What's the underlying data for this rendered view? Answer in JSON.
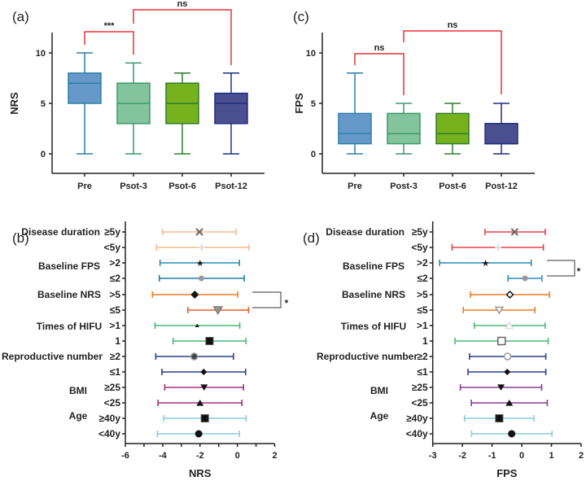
{
  "chart_data": [
    {
      "panel": "(a)",
      "type": "box",
      "ylabel": "NRS",
      "ylim": [
        -2,
        12
      ],
      "yticks": [
        0,
        5,
        10
      ],
      "categories": [
        "Pre",
        "Psot-3",
        "Psot-6",
        "Psot-12"
      ],
      "boxes": [
        {
          "min": 0,
          "q1": 5,
          "median": 7,
          "q3": 8,
          "max": 10,
          "fill": "#6699c9",
          "stroke": "#2b7fa6"
        },
        {
          "min": 0,
          "q1": 3,
          "median": 5,
          "q3": 7,
          "max": 9,
          "fill": "#84c49c",
          "stroke": "#3a9a6a"
        },
        {
          "min": 0,
          "q1": 3,
          "median": 5,
          "q3": 7,
          "max": 8,
          "fill": "#76b21e",
          "stroke": "#2f7d2a"
        },
        {
          "min": 0,
          "q1": 3,
          "median": 5,
          "q3": 6,
          "max": 8,
          "fill": "#4a4f8f",
          "stroke": "#1e2f80"
        }
      ],
      "comparisons": [
        {
          "from": 0,
          "to": 1,
          "label": "***"
        },
        {
          "from": 1,
          "to": 3,
          "label": "ns"
        }
      ]
    },
    {
      "panel": "(c)",
      "type": "box",
      "ylabel": "FPS",
      "ylim": [
        -2,
        12
      ],
      "yticks": [
        0,
        5,
        10
      ],
      "categories": [
        "Pre",
        "Post-3",
        "Post-6",
        "Post-12"
      ],
      "boxes": [
        {
          "min": 0,
          "q1": 1,
          "median": 2,
          "q3": 4,
          "max": 8,
          "fill": "#6699c9",
          "stroke": "#2b7fa6"
        },
        {
          "min": 0,
          "q1": 1,
          "median": 2,
          "q3": 4,
          "max": 5,
          "fill": "#84c49c",
          "stroke": "#3a9a6a"
        },
        {
          "min": 0,
          "q1": 1,
          "median": 2,
          "q3": 4,
          "max": 5,
          "fill": "#76b21e",
          "stroke": "#2f7d2a"
        },
        {
          "min": 0,
          "q1": 1,
          "median": 1,
          "q3": 3,
          "max": 5,
          "fill": "#4a4f8f",
          "stroke": "#1e2f80"
        }
      ],
      "comparisons": [
        {
          "from": 0,
          "to": 1,
          "label": "ns"
        },
        {
          "from": 1,
          "to": 3,
          "label": "ns"
        }
      ]
    },
    {
      "panel": "(b)",
      "type": "forest",
      "xlabel": "NRS",
      "xlim": [
        -6,
        2
      ],
      "xticks": [
        -6,
        -4,
        -2,
        0,
        2
      ],
      "groups": [
        "Disease duration",
        "Baseline FPS",
        "Baseline NRS",
        "Times of HIFU",
        "Reproductive number",
        "BMI",
        "Age"
      ],
      "rows": [
        {
          "label": "≥5y",
          "lo": -4.0,
          "mean": -2.03,
          "hi": -0.07,
          "color": "#f9b98a",
          "marker": "x"
        },
        {
          "label": "<5y",
          "lo": -4.33,
          "mean": -1.91,
          "hi": 0.62,
          "color": "#f9b98a",
          "marker": "plus"
        },
        {
          "label": ">2",
          "lo": -4.14,
          "mean": -2.0,
          "hi": 0.11,
          "color": "#2a8bb5",
          "marker": "star"
        },
        {
          "label": "≤2",
          "lo": -4.18,
          "mean": -1.93,
          "hi": 0.37,
          "color": "#1f7fa6",
          "marker": "greycircle"
        },
        {
          "label": ">5",
          "lo": -4.55,
          "mean": -2.28,
          "hi": 0.02,
          "color": "#f47c20",
          "marker": "diamond"
        },
        {
          "label": "≤5",
          "lo": -2.65,
          "mean": -1.04,
          "hi": 0.6,
          "color": "#f05a1e",
          "marker": "greytridown"
        },
        {
          "label": ">1",
          "lo": -4.41,
          "mean": -2.15,
          "hi": 0.13,
          "color": "#4cb87a",
          "marker": "smalltri"
        },
        {
          "label": "1",
          "lo": -3.44,
          "mean": -1.49,
          "hi": 0.46,
          "color": "#4cb87a",
          "marker": "square"
        },
        {
          "label": "≥2",
          "lo": -4.37,
          "mean": -2.31,
          "hi": -0.21,
          "color": "#2c3e8c",
          "marker": "ringcircle"
        },
        {
          "label": "≤1",
          "lo": -4.04,
          "mean": -1.8,
          "hi": 0.44,
          "color": "#2c3e8c",
          "marker": "smalldiamond"
        },
        {
          "label": "≥25",
          "lo": -3.89,
          "mean": -1.78,
          "hi": 0.33,
          "color": "#a0307f",
          "marker": "tridown"
        },
        {
          "label": "<25",
          "lo": -4.25,
          "mean": -2.0,
          "hi": 0.24,
          "color": "#a0307f",
          "marker": "tri"
        },
        {
          "label": "≥40y",
          "lo": -3.95,
          "mean": -1.74,
          "hi": 0.47,
          "color": "#87cce0",
          "marker": "square"
        },
        {
          "label": "<40y",
          "lo": -4.28,
          "mean": -2.07,
          "hi": 0.11,
          "color": "#87cce0",
          "marker": "circle"
        }
      ],
      "significance": {
        "rows": [
          4,
          5
        ],
        "label": "*"
      }
    },
    {
      "panel": "(d)",
      "type": "forest",
      "xlabel": "FPS",
      "xlim": [
        -3,
        2
      ],
      "xticks": [
        -3,
        -2,
        -1,
        0,
        1,
        2
      ],
      "groups": [
        "Disease duration",
        "Baseline FPS",
        "Baseline NRS",
        "Times of HIFU",
        "Reproductive number",
        "BMI",
        "Age"
      ],
      "rows": [
        {
          "label": "≥5y",
          "lo": -1.24,
          "mean": -0.24,
          "hi": 0.79,
          "color": "#e8404a",
          "marker": "x"
        },
        {
          "label": "<5y",
          "lo": -2.35,
          "mean": -0.8,
          "hi": 0.73,
          "color": "#e8404a",
          "marker": "plus"
        },
        {
          "label": ">2",
          "lo": -2.77,
          "mean": -1.22,
          "hi": 0.32,
          "color": "#2a8bb5",
          "marker": "star"
        },
        {
          "label": "≤2",
          "lo": -0.46,
          "mean": 0.11,
          "hi": 0.68,
          "color": "#2a8bb5",
          "marker": "greycircle"
        },
        {
          "label": ">5",
          "lo": -1.73,
          "mean": -0.4,
          "hi": 0.93,
          "color": "#f47c20",
          "marker": "opendiamond"
        },
        {
          "label": "≤5",
          "lo": -1.97,
          "mean": -0.76,
          "hi": 0.44,
          "color": "#f47c20",
          "marker": "opentridown"
        },
        {
          "label": ">1",
          "lo": -1.6,
          "mean": -0.42,
          "hi": 0.79,
          "color": "#4cb87a",
          "marker": "opentri"
        },
        {
          "label": "1",
          "lo": -2.25,
          "mean": -0.68,
          "hi": 0.89,
          "color": "#4cb87a",
          "marker": "opensquare"
        },
        {
          "label": "≥2",
          "lo": -1.76,
          "mean": -0.48,
          "hi": 0.81,
          "color": "#2c3e8c",
          "marker": "opencircle"
        },
        {
          "label": "≤1",
          "lo": -1.81,
          "mean": -0.49,
          "hi": 0.81,
          "color": "#2c3e8c",
          "marker": "smalldiamond"
        },
        {
          "label": "≥25",
          "lo": -2.07,
          "mean": -0.7,
          "hi": 0.67,
          "color": "#8a3a9a",
          "marker": "tridown"
        },
        {
          "label": "<25",
          "lo": -1.7,
          "mean": -0.42,
          "hi": 0.86,
          "color": "#8a3a9a",
          "marker": "tri"
        },
        {
          "label": "≥40y",
          "lo": -1.93,
          "mean": -0.76,
          "hi": 0.41,
          "color": "#87cce0",
          "marker": "square"
        },
        {
          "label": "<40y",
          "lo": -1.69,
          "mean": -0.34,
          "hi": 1.02,
          "color": "#87cce0",
          "marker": "circle"
        }
      ],
      "significance": {
        "rows": [
          2,
          3
        ],
        "label": "*"
      }
    }
  ],
  "colors": {
    "bracket": "#e8303a",
    "axis": "#222222"
  }
}
